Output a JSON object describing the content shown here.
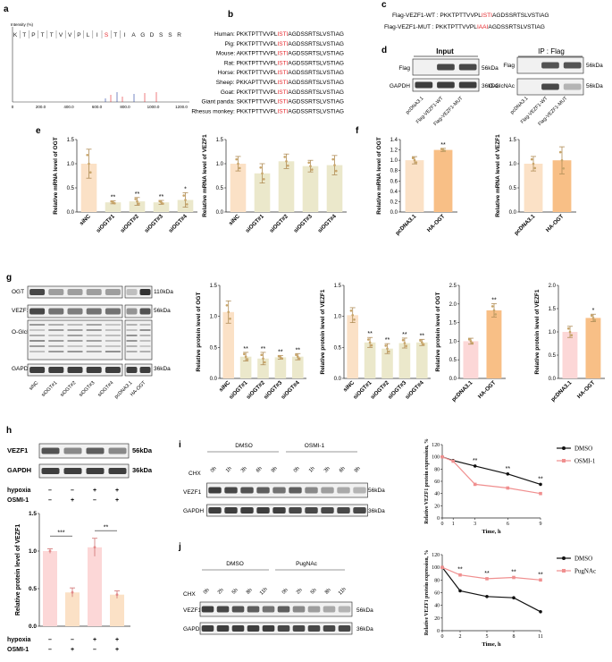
{
  "panels": {
    "a": "a",
    "b": "b",
    "c": "c",
    "d": "d",
    "e": "e",
    "f": "f",
    "g": "g",
    "h": "h",
    "i": "i",
    "j": "j"
  },
  "colors": {
    "orange_light": "#fbe1c6",
    "orange_mid": "#f8bf86",
    "orange_dark": "#f0a55c",
    "olive": "#ebe8cb",
    "pink": "#fcd7d7",
    "pink_line": "#f08f8f",
    "highlight_red": "#e5262b"
  },
  "panel_a": {
    "ylabel": "Intensity (%)",
    "peptide": [
      "K",
      "T",
      "P",
      "T",
      "T",
      "V",
      "V",
      "P",
      "L",
      "I",
      "S",
      "T",
      "I",
      "A",
      "G",
      "D",
      "S",
      "S",
      "R"
    ],
    "red_index": 10,
    "xticks": [
      "0",
      "200.0",
      "400.0",
      "600.0",
      "800.0",
      "1000.0",
      "1200.0"
    ]
  },
  "panel_b": {
    "rows": [
      {
        "species": "Human:",
        "pre": "PKKTPTTVVPL",
        "mid": "ISTI",
        "post": "AGDSSRTSLVSTIAG"
      },
      {
        "species": "Pig:",
        "pre": "PKKTPTTVVPL",
        "mid": "ISTI",
        "post": "AGDSSRTSLVSTIAG"
      },
      {
        "species": "Mouse:",
        "pre": "AKKTPTTVVPL",
        "mid": "ISTI",
        "post": "AGDSSRTSLVSTIAG"
      },
      {
        "species": "Rat:",
        "pre": "PKKTPTTVVPL",
        "mid": "ISTI",
        "post": "AGDSSRTSLVSTIAG"
      },
      {
        "species": "Horse:",
        "pre": "PKKTPTTVVPL",
        "mid": "ISTI",
        "post": "AGDSSRTSLVSTIAG"
      },
      {
        "species": "Sheep:",
        "pre": "PKKAPTTVVPL",
        "mid": "ISTI",
        "post": "AGDSSRTSLVSTIAG"
      },
      {
        "species": "Goat:",
        "pre": "PKKTPTTVVPL",
        "mid": "ISTI",
        "post": "AGDSSRTSLVSTIAG"
      },
      {
        "species": "Giant panda:",
        "pre": "SKKTPTTVVPL",
        "mid": "ISTI",
        "post": "AGDSSRTSLVSTIAG"
      },
      {
        "species": "Rhesus monkey:",
        "pre": "PKKTPTTVVPL",
        "mid": "ISTI",
        "post": "AGDSSRTSLVSTIAG"
      }
    ]
  },
  "panel_c": {
    "wt_label": "Flag-VEZF1-WT : ",
    "wt_pre": "PKKTPTTVVPL",
    "wt_mid": "ISTI",
    "wt_post": "AGDSSRTSLVSTIAG",
    "mut_label": "Flag-VEZF1-MUT : ",
    "mut_pre": "PKKTPTTVVPL",
    "mut_mid": "IAAI",
    "mut_post": "AGDSSRTSLVSTIAG"
  },
  "panel_d": {
    "input_title": "Input",
    "ip_title": "IP : Flag",
    "input_rows": [
      "Flag",
      "GAPDH"
    ],
    "input_kda": [
      "56kDa",
      "36kDa"
    ],
    "ip_rows": [
      "Flag",
      "O-GlcNAc"
    ],
    "ip_kda": [
      "56kDa",
      "56kDa"
    ],
    "lanes": [
      "pcDNA3.1",
      "Flag-VEZF1-WT",
      "Flag-VEZF1-MUT"
    ]
  },
  "panel_e": {
    "charts": [
      {
        "ylabel": "Relative mRNA level of OGT",
        "yticks": [
          "0.0",
          "0.5",
          "1.0",
          "1.5"
        ],
        "ymax": 1.5,
        "categories": [
          "siNC",
          "siOGT#1",
          "siOGT#2",
          "siOGT#3",
          "siOGT#4"
        ],
        "values": [
          1.0,
          0.2,
          0.22,
          0.2,
          0.25
        ],
        "errors": [
          0.3,
          0.03,
          0.08,
          0.04,
          0.15
        ],
        "sig": [
          "",
          "**",
          "**",
          "**",
          "*"
        ]
      },
      {
        "ylabel": "Relative mRNA level of VEZF1",
        "yticks": [
          "0.0",
          "0.5",
          "1.0",
          "1.5"
        ],
        "ymax": 1.5,
        "categories": [
          "siNC",
          "siOGT#1",
          "siOGT#2",
          "siOGT#3",
          "siOGT#4"
        ],
        "values": [
          1.0,
          0.8,
          1.05,
          0.95,
          0.97
        ],
        "errors": [
          0.15,
          0.2,
          0.15,
          0.12,
          0.2
        ],
        "sig": [
          "",
          "",
          "",
          "",
          ""
        ]
      }
    ]
  },
  "panel_f": {
    "charts": [
      {
        "ylabel": "Relative mRNA level of OGT",
        "yticks": [
          "0.0",
          "0.2",
          "0.4",
          "0.6",
          "0.8",
          "1.0",
          "1.2",
          "1.4"
        ],
        "ymax": 1.4,
        "categories": [
          "pcDNA3.1",
          "HA-OGT"
        ],
        "values": [
          1.0,
          1.2
        ],
        "errors": [
          0.07,
          0.03
        ],
        "sig": [
          "",
          "**"
        ]
      },
      {
        "ylabel": "Relative mRNA level of VEZF1",
        "yticks": [
          "0.0",
          "0.5",
          "1.0",
          "1.5"
        ],
        "ymax": 1.5,
        "categories": [
          "pcDNA3.1",
          "HA-OGT"
        ],
        "values": [
          1.0,
          1.07
        ],
        "errors": [
          0.15,
          0.28
        ],
        "sig": [
          "",
          ""
        ]
      }
    ]
  },
  "panel_g": {
    "blot_rows": [
      "OGT",
      "VEZF1",
      "O-GlcNAc",
      "GAPDH"
    ],
    "blot_kda": [
      "110kDa",
      "56kDa",
      "36kDa"
    ],
    "lanes": [
      "siNC",
      "siOGT#1",
      "siOGT#2",
      "siOGT#3",
      "siOGT#4",
      "pcDNA3.1",
      "HA-OGT"
    ],
    "charts": [
      {
        "ylabel": "Relative protein level of OGT",
        "yticks": [
          "0.0",
          "0.5",
          "1.0",
          "1.5"
        ],
        "ymax": 1.5,
        "categories": [
          "siNC",
          "siOGT#1",
          "siOGT#2",
          "siOGT#3",
          "siOGT#4"
        ],
        "values": [
          1.07,
          0.35,
          0.32,
          0.34,
          0.35
        ],
        "errors": [
          0.18,
          0.07,
          0.1,
          0.03,
          0.05
        ],
        "sig": [
          "",
          "**",
          "**",
          "**",
          "**"
        ]
      },
      {
        "ylabel": "Relative protein level of VEZF1",
        "yticks": [
          "0.0",
          "0.5",
          "1.0",
          "1.5"
        ],
        "ymax": 1.5,
        "categories": [
          "siNC",
          "siOGT#1",
          "siOGT#2",
          "siOGT#3",
          "siOGT#4"
        ],
        "values": [
          1.02,
          0.58,
          0.48,
          0.57,
          0.58
        ],
        "errors": [
          0.12,
          0.08,
          0.08,
          0.08,
          0.05
        ],
        "sig": [
          "",
          "**",
          "**",
          "**",
          "**"
        ]
      },
      {
        "ylabel": "Relative protein level of OGT",
        "yticks": [
          "0.0",
          "0.5",
          "1.0",
          "1.5",
          "2.0",
          "2.5"
        ],
        "ymax": 2.5,
        "categories": [
          "pcDNA3.1",
          "HA-OGT"
        ],
        "values": [
          1.0,
          1.83
        ],
        "errors": [
          0.08,
          0.18
        ],
        "sig": [
          "",
          "**"
        ]
      },
      {
        "ylabel": "Relative protein level of VEZF1",
        "yticks": [
          "0.0",
          "0.5",
          "1.0",
          "1.5",
          "2.0"
        ],
        "ymax": 2.0,
        "categories": [
          "pcDNA3.1",
          "HA-OGT"
        ],
        "values": [
          1.0,
          1.3
        ],
        "errors": [
          0.12,
          0.08
        ],
        "sig": [
          "",
          "*"
        ]
      }
    ]
  },
  "panel_h": {
    "blot_rows": [
      "VEZF1",
      "GAPDH"
    ],
    "blot_kda": [
      "56kDa",
      "36kDa"
    ],
    "conditions": [
      {
        "label": "hypoxia",
        "signs": [
          "–",
          "–",
          "+",
          "+"
        ]
      },
      {
        "label": "OSMI-1",
        "signs": [
          "–",
          "+",
          "–",
          "+"
        ]
      }
    ],
    "chart": {
      "ylabel": "Relative protein level of VEZF1",
      "yticks": [
        "0.0",
        "0.5",
        "1.0",
        "1.5"
      ],
      "ymax": 1.5,
      "values": [
        1.0,
        0.45,
        1.05,
        0.42
      ],
      "errors": [
        0.03,
        0.06,
        0.12,
        0.05
      ],
      "sig": [
        {
          "text": "***",
          "from": 0,
          "to": 1
        },
        {
          "text": "**",
          "from": 2,
          "to": 3
        }
      ]
    }
  },
  "panel_i": {
    "groups": [
      "DMSO",
      "OSMI-1"
    ],
    "chx": "CHX",
    "timepoints": [
      "0h",
      "1h",
      "3h",
      "6h",
      "9h",
      "0h",
      "1h",
      "3h",
      "6h",
      "9h"
    ],
    "blot_rows": [
      "VEZF1",
      "GAPDH"
    ],
    "blot_kda": [
      "56kDa",
      "36kDa"
    ],
    "chart": {
      "type": "line",
      "ylabel": "Relative VEZF1 protein expression, %",
      "xlabel": "Time, h",
      "x": [
        0,
        1,
        3,
        6,
        9
      ],
      "yticks": [
        "0",
        "20",
        "40",
        "60",
        "80",
        "100",
        "120"
      ],
      "ymax": 120,
      "series": [
        {
          "name": "DMSO",
          "values": [
            100,
            94,
            85,
            72,
            55
          ]
        },
        {
          "name": "OSMI-1",
          "values": [
            100,
            93,
            55,
            49,
            40
          ]
        }
      ],
      "sig": [
        "",
        "",
        "**",
        "**",
        "**"
      ]
    }
  },
  "panel_j": {
    "groups": [
      "DMSO",
      "PugNAc"
    ],
    "chx": "CHX",
    "timepoints": [
      "0h",
      "2h",
      "5h",
      "8h",
      "11h",
      "0h",
      "2h",
      "5h",
      "8h",
      "11h"
    ],
    "blot_rows": [
      "VEZF1",
      "GAPDH"
    ],
    "blot_kda": [
      "56kDa",
      "36kDa"
    ],
    "chart": {
      "type": "line",
      "ylabel": "Relative VEZF1 protein expression, %",
      "xlabel": "Time, h",
      "x": [
        0,
        2,
        5,
        8,
        11
      ],
      "yticks": [
        "0",
        "20",
        "40",
        "60",
        "80",
        "100",
        "120"
      ],
      "ymax": 120,
      "series": [
        {
          "name": "DMSO",
          "values": [
            100,
            63,
            54,
            52,
            30
          ]
        },
        {
          "name": "PugNAc",
          "values": [
            100,
            88,
            82,
            84,
            80
          ]
        }
      ],
      "sig": [
        "",
        "**",
        "**",
        "**",
        "**"
      ]
    }
  }
}
